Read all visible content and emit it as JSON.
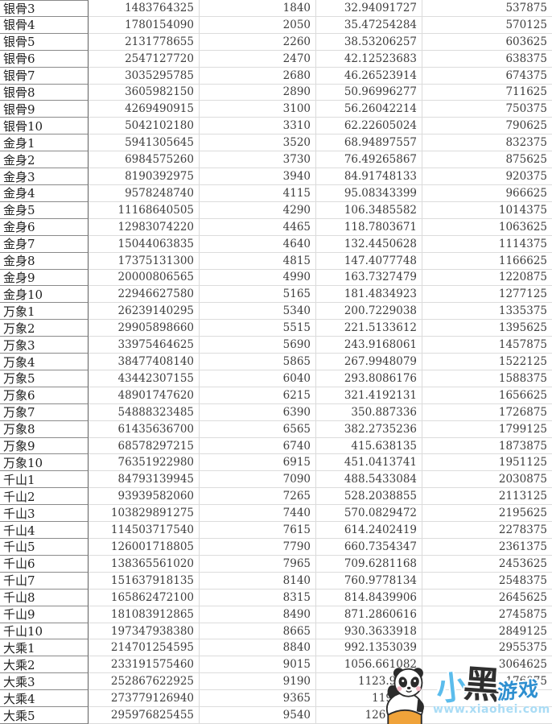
{
  "table": {
    "rows": [
      [
        "银骨3",
        "1483764325",
        "1840",
        "32.94091727",
        "537875"
      ],
      [
        "银骨4",
        "1780154090",
        "2050",
        "35.47254284",
        "570125"
      ],
      [
        "银骨5",
        "2131778655",
        "2260",
        "38.53206257",
        "603625"
      ],
      [
        "银骨6",
        "2547127720",
        "2470",
        "42.12523683",
        "638375"
      ],
      [
        "银骨7",
        "3035295785",
        "2680",
        "46.26523914",
        "674375"
      ],
      [
        "银骨8",
        "3605982150",
        "2890",
        "50.96996277",
        "711625"
      ],
      [
        "银骨9",
        "4269490915",
        "3100",
        "56.26042214",
        "750375"
      ],
      [
        "银骨10",
        "5042102180",
        "3310",
        "62.22605024",
        "790625"
      ],
      [
        "金身1",
        "5941305645",
        "3520",
        "68.94897557",
        "832375"
      ],
      [
        "金身2",
        "6984575260",
        "3730",
        "76.49265867",
        "875625"
      ],
      [
        "金身3",
        "8190392975",
        "3940",
        "84.91748133",
        "920375"
      ],
      [
        "金身4",
        "9578248740",
        "4115",
        "95.08343399",
        "966625"
      ],
      [
        "金身5",
        "11168640505",
        "4290",
        "106.3485582",
        "1014375"
      ],
      [
        "金身6",
        "12983074220",
        "4465",
        "118.7803671",
        "1063625"
      ],
      [
        "金身7",
        "15044063835",
        "4640",
        "132.4450628",
        "1114375"
      ],
      [
        "金身8",
        "17375131300",
        "4815",
        "147.4077748",
        "1166625"
      ],
      [
        "金身9",
        "20000806565",
        "4990",
        "163.7327479",
        "1220875"
      ],
      [
        "金身10",
        "22946627580",
        "5165",
        "181.4834923",
        "1277125"
      ],
      [
        "万象1",
        "26239140295",
        "5340",
        "200.7229038",
        "1335375"
      ],
      [
        "万象2",
        "29905898660",
        "5515",
        "221.5133612",
        "1395625"
      ],
      [
        "万象3",
        "33975464625",
        "5690",
        "243.9168061",
        "1457875"
      ],
      [
        "万象4",
        "38477408140",
        "5865",
        "267.9948079",
        "1522125"
      ],
      [
        "万象5",
        "43442307155",
        "6040",
        "293.8086176",
        "1588375"
      ],
      [
        "万象6",
        "48901747620",
        "6215",
        "321.4192131",
        "1656625"
      ],
      [
        "万象7",
        "54888323485",
        "6390",
        "350.887336",
        "1726875"
      ],
      [
        "万象8",
        "61435636700",
        "6565",
        "382.2735236",
        "1799125"
      ],
      [
        "万象9",
        "68578297215",
        "6740",
        "415.638135",
        "1873875"
      ],
      [
        "万象10",
        "76351922980",
        "6915",
        "451.0413741",
        "1951125"
      ],
      [
        "千山1",
        "84793139945",
        "7090",
        "488.5433084",
        "2030875"
      ],
      [
        "千山2",
        "93939582060",
        "7265",
        "528.2038855",
        "2113125"
      ],
      [
        "千山3",
        "103829891275",
        "7440",
        "570.0829472",
        "2195625"
      ],
      [
        "千山4",
        "114503717540",
        "7615",
        "614.2402419",
        "2278375"
      ],
      [
        "千山5",
        "126001718805",
        "7790",
        "660.7354347",
        "2361375"
      ],
      [
        "千山6",
        "138365561020",
        "7965",
        "709.6281168",
        "2453625"
      ],
      [
        "千山7",
        "151637918135",
        "8140",
        "760.9778134",
        "2548375"
      ],
      [
        "千山8",
        "165862472100",
        "8315",
        "814.8439906",
        "2645625"
      ],
      [
        "千山9",
        "181083912865",
        "8490",
        "871.2860616",
        "2745875"
      ],
      [
        "千山10",
        "197347938380",
        "8665",
        "930.3633918",
        "2849125"
      ],
      [
        "大乘1",
        "214701254595",
        "8840",
        "992.1353039",
        "2955375"
      ],
      [
        "大乘2",
        "233191575460",
        "9015",
        "1056.661082",
        "3064625"
      ],
      [
        "大乘3",
        "252867622925",
        "9190",
        "1123.9999",
        "176875"
      ],
      [
        "大乘4",
        "273779126940",
        "9365",
        "1194.21",
        ""
      ],
      [
        "大乘5",
        "295976825455",
        "9540",
        "1267.353",
        ""
      ]
    ]
  },
  "watermark": {
    "char_xiao": "小",
    "char_hei": "黑",
    "char_youxi": "游戏",
    "url": "www.xiaohei.com",
    "color_blue": "#5bbcec",
    "color_dark": "#2f2f2f",
    "color_url": "#aadcf5",
    "color_pants": "#f0a33a"
  }
}
